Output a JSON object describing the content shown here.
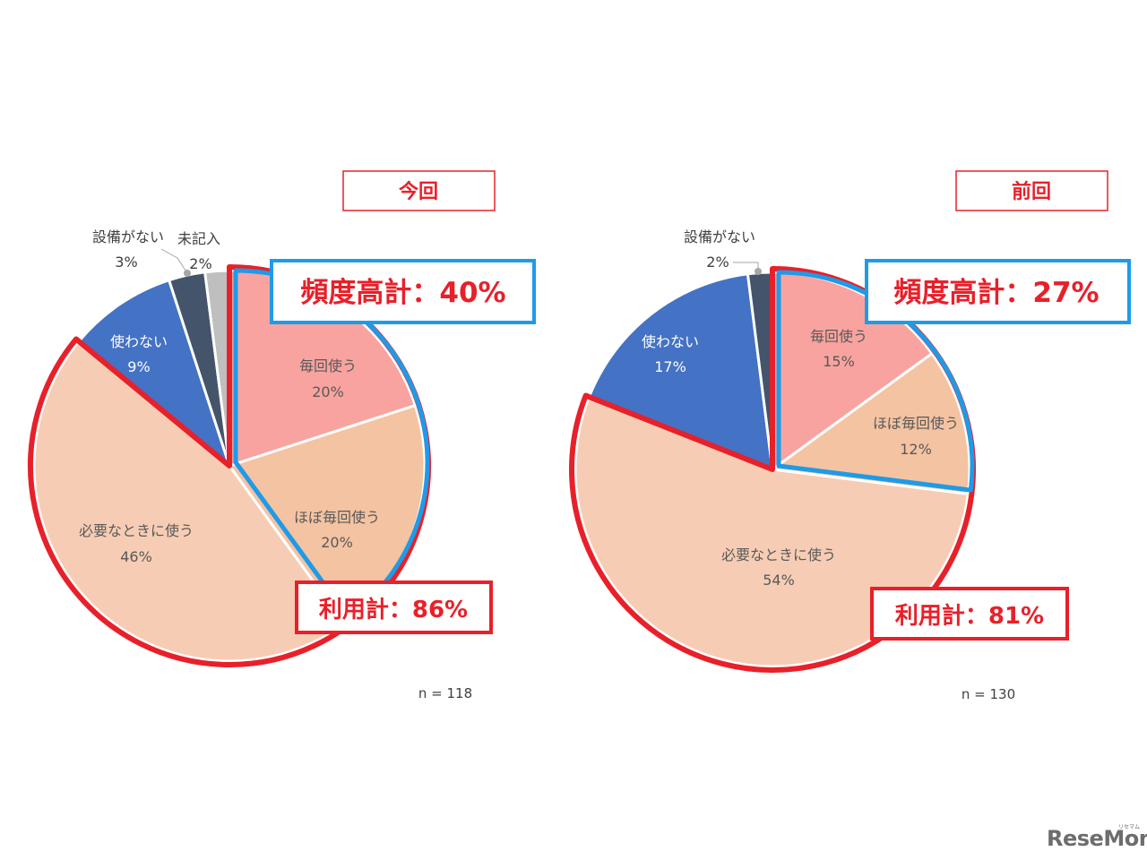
{
  "chart_data": [
    {
      "type": "pie",
      "title": "今回",
      "n_label": "n = 118",
      "slices": [
        {
          "name": "毎回使う",
          "value": 20,
          "label": "20%",
          "color": "#f8a39f"
        },
        {
          "name": "ほぼ毎回使う",
          "value": 20,
          "label": "20%",
          "color": "#f4c3a2"
        },
        {
          "name": "必要なときに使う",
          "value": 46,
          "label": "46%",
          "color": "#f6cdb4"
        },
        {
          "name": "使わない",
          "value": 9,
          "label": "9%",
          "color": "#4472c4"
        },
        {
          "name": "設備がない",
          "value": 3,
          "label": "3%",
          "color": "#44546a"
        },
        {
          "name": "未記入",
          "value": 2,
          "label": "2%",
          "color": "#bfbfbf"
        }
      ],
      "callouts": {
        "frequent_total": "頻度高計：40%",
        "usage_total": "利用計：86%"
      }
    },
    {
      "type": "pie",
      "title": "前回",
      "n_label": "n = 130",
      "slices": [
        {
          "name": "毎回使う",
          "value": 15,
          "label": "15%",
          "color": "#f8a39f"
        },
        {
          "name": "ほぼ毎回使う",
          "value": 12,
          "label": "12%",
          "color": "#f4c3a2"
        },
        {
          "name": "必要なときに使う",
          "value": 54,
          "label": "54%",
          "color": "#f6cdb4"
        },
        {
          "name": "使わない",
          "value": 17,
          "label": "17%",
          "color": "#4472c4"
        },
        {
          "name": "設備がない",
          "value": 2,
          "label": "2%",
          "color": "#44546a"
        }
      ],
      "callouts": {
        "frequent_total": "頻度高計：27%",
        "usage_total": "利用計：81%"
      }
    }
  ],
  "watermark": {
    "text": "ReseMom",
    "kana": "リセマム"
  },
  "colors": {
    "accent_red": "#e8202a",
    "accent_blue": "#1e9be8"
  }
}
